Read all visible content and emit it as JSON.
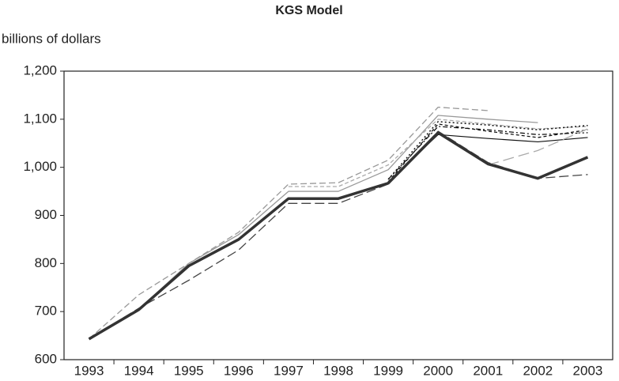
{
  "chart_data": {
    "type": "line",
    "title": "KGS Model",
    "y_label": "billions of dollars",
    "categories": [
      "1993",
      "1994",
      "1995",
      "1996",
      "1997",
      "1998",
      "1999",
      "2000",
      "2001",
      "2002",
      "2003"
    ],
    "ylim": [
      600,
      1200
    ],
    "yticks": [
      600,
      700,
      800,
      900,
      {
        "value": 1000,
        "label": "1,000"
      },
      {
        "value": 1100,
        "label": "1,100"
      },
      {
        "value": 1200,
        "label": "1,200"
      }
    ],
    "grid": false,
    "series": [
      {
        "color": "#999999",
        "dash": "8,4",
        "width": 1.3,
        "values": [
          643,
          735,
          800,
          865,
          965,
          968,
          1015,
          1125,
          1118,
          null,
          null
        ]
      },
      {
        "color": "#999999",
        "dash": "none",
        "width": 1.3,
        "values": [
          643,
          705,
          800,
          860,
          950,
          950,
          995,
          1108,
          1100,
          1093,
          null
        ]
      },
      {
        "color": "#aaaaaa",
        "dash": "5,3",
        "width": 1.3,
        "values": [
          null,
          null,
          null,
          null,
          960,
          960,
          1005,
          1100,
          1090,
          1080,
          1085
        ]
      },
      {
        "color": "#444444",
        "dash": "12,5",
        "width": 1.3,
        "values": [
          643,
          707,
          765,
          828,
          925,
          925,
          965,
          1075,
          1010,
          977,
          985
        ]
      },
      {
        "color": "#111111",
        "dash": "none",
        "width": 1.2,
        "values": [
          null,
          null,
          null,
          null,
          null,
          null,
          970,
          1068,
          1060,
          1053,
          1062
        ]
      },
      {
        "color": "#111111",
        "dash": "2,3",
        "width": 1.5,
        "values": [
          null,
          null,
          null,
          null,
          null,
          null,
          975,
          1095,
          1088,
          1078,
          1087
        ]
      },
      {
        "color": "#111111",
        "dash": "6,3,2,3",
        "width": 1.3,
        "values": [
          null,
          null,
          null,
          null,
          null,
          null,
          975,
          1085,
          1078,
          1068,
          1072
        ]
      },
      {
        "color": "#111111",
        "dash": "4,3",
        "width": 1.3,
        "values": [
          null,
          null,
          null,
          null,
          null,
          null,
          970,
          1090,
          1075,
          1062,
          1078
        ]
      },
      {
        "color": "#aaaaaa",
        "dash": "14,6",
        "width": 1.3,
        "values": [
          null,
          null,
          null,
          null,
          null,
          null,
          null,
          null,
          1005,
          1035,
          1080
        ]
      },
      {
        "color": "#333333",
        "dash": "none",
        "width": 3.5,
        "values": [
          643,
          704,
          795,
          850,
          935,
          935,
          967,
          1072,
          1007,
          977,
          1021
        ]
      }
    ]
  }
}
